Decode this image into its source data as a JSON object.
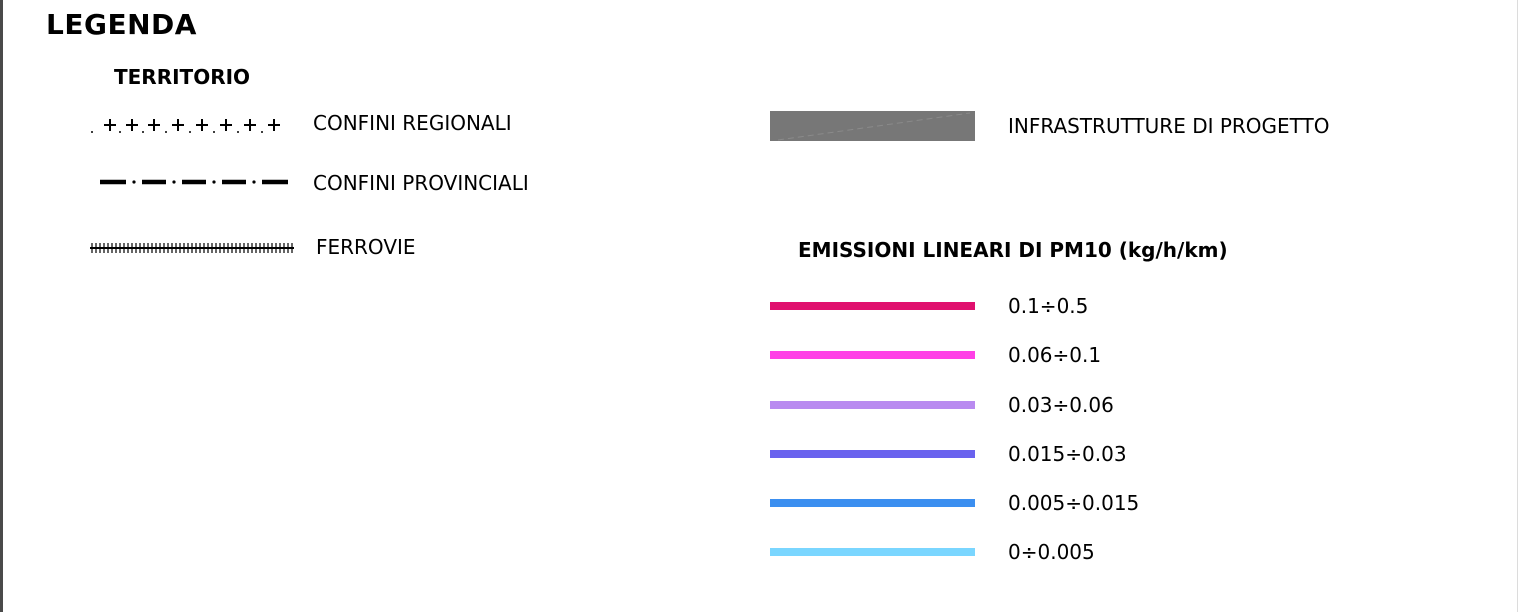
{
  "legend": {
    "title": "LEGENDA",
    "territorio": {
      "title": "TERRITORIO",
      "items": [
        {
          "label": "CONFINI REGIONALI",
          "symbol": "cross-line"
        },
        {
          "label": "CONFINI PROVINCIALI",
          "symbol": "dash-dot-line"
        },
        {
          "label": "FERROVIE",
          "symbol": "railway-line"
        }
      ]
    },
    "infrastrutture": {
      "label": "INFRASTRUTTURE DI PROGETTO",
      "color": "#777777"
    },
    "emissioni": {
      "title": "EMISSIONI LINEARI DI PM10 (kg/h/km)",
      "classes": [
        {
          "label": "0.1÷0.5",
          "color": "#e0106e"
        },
        {
          "label": "0.06÷0.1",
          "color": "#ff40e6"
        },
        {
          "label": "0.03÷0.06",
          "color": "#b98af0"
        },
        {
          "label": "0.015÷0.03",
          "color": "#6a62ee"
        },
        {
          "label": "0.005÷0.015",
          "color": "#3b8ff0"
        },
        {
          "label": "0÷0.005",
          "color": "#7ad6ff"
        }
      ]
    }
  }
}
